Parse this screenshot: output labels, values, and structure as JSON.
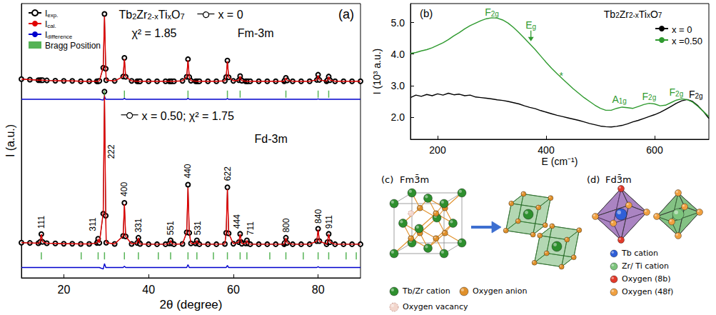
{
  "chart_data": [
    {
      "type": "line",
      "title": "(a)",
      "x_label": "2θ (degree)",
      "y_label": "I (a.u.)",
      "xlim": [
        10,
        90
      ],
      "xticks": [
        20,
        40,
        60,
        80
      ],
      "ylim": [
        -6,
        100
      ],
      "tick_labels": "x",
      "legend": "upper left",
      "x": [
        10,
        12,
        14,
        14.4,
        14.7,
        15,
        16,
        18,
        20,
        22,
        24,
        26,
        27.8,
        28,
        28.1,
        28.4,
        29.3,
        29.6,
        29.9,
        30,
        32,
        34,
        34.3,
        34.6,
        36,
        37.3,
        37.6,
        37.9,
        38,
        40,
        42,
        44,
        44.9,
        45.2,
        45.5,
        46,
        48,
        49,
        49.3,
        49.6,
        50,
        51.1,
        51.4,
        51.7,
        52,
        54,
        56,
        58,
        58.3,
        58.6,
        58.9,
        60,
        61.3,
        61.6,
        61.9,
        62,
        62.9,
        63.2,
        63.5,
        64,
        66,
        68,
        70,
        72,
        72.1,
        72.4,
        72.7,
        74,
        76,
        78,
        79.7,
        80,
        80.3,
        82,
        82.2,
        82.5,
        82.8,
        84,
        86,
        88,
        90
      ],
      "series": [
        {
          "name": "Iexp.",
          "color": "#000000",
          "marker": "circle",
          "values": [
            70.8,
            70.6,
            70.4,
            70.4,
            70.4,
            70.4,
            70.3,
            70.2,
            70.1,
            70.1,
            70,
            70,
            70,
            70,
            70,
            70.1,
            75.2,
            96,
            74.8,
            70.4,
            70.1,
            71.8,
            79,
            71.7,
            70.1,
            70,
            70,
            70,
            70,
            70,
            70,
            70,
            70,
            70,
            70,
            70,
            70.1,
            71.7,
            78.5,
            71.6,
            70.2,
            70,
            70,
            70,
            70,
            70,
            70,
            70.1,
            71.6,
            78,
            71.5,
            70.1,
            70.4,
            72,
            70.4,
            70.2,
            70,
            70,
            70,
            70,
            70,
            70,
            70,
            70,
            70.3,
            71.3,
            70.3,
            70,
            70,
            70,
            70.5,
            72.5,
            70.5,
            70,
            70.4,
            71.8,
            70.4,
            70,
            70,
            70,
            70
          ]
        },
        {
          "name": "Ical.",
          "color": "#e00000",
          "values": [
            70.8,
            70.6,
            70.4,
            70.4,
            70.4,
            70.4,
            70.3,
            70.2,
            70.1,
            70.1,
            70,
            70,
            70,
            70,
            70,
            70.1,
            75.5,
            95,
            74.8,
            70.4,
            70.1,
            71.8,
            78.6,
            71.7,
            70.1,
            70,
            70,
            70,
            70,
            70,
            70,
            70,
            70,
            70,
            70,
            70,
            70.1,
            71.7,
            78.1,
            71.6,
            70.2,
            70,
            70,
            70,
            70,
            70,
            70,
            70.1,
            71.6,
            77.7,
            71.5,
            70.1,
            70.4,
            72,
            70.4,
            70.2,
            70,
            70,
            70,
            70,
            70,
            70,
            70,
            70,
            70.3,
            71.3,
            70.3,
            70,
            70,
            70,
            70.5,
            72.3,
            70.5,
            70,
            70.4,
            71.8,
            70.4,
            70,
            70,
            70,
            70
          ]
        },
        {
          "name": "Idifference",
          "color": "#0000cc",
          "values": [
            63,
            63,
            63,
            63,
            63,
            63,
            63,
            63,
            63,
            63,
            63,
            63,
            63,
            63,
            63,
            63,
            62.7,
            64,
            63,
            63,
            63,
            63,
            63.4,
            63,
            63,
            63,
            63,
            63,
            63,
            63,
            63,
            63,
            63,
            63,
            63,
            63,
            63,
            63,
            63.4,
            63,
            63,
            63,
            63,
            63,
            63,
            63,
            63,
            63,
            63,
            63.3,
            63,
            63,
            63,
            63,
            63,
            63,
            63,
            63,
            63,
            63,
            63,
            63,
            63,
            63,
            63,
            63,
            63,
            63,
            63,
            63,
            63,
            63.2,
            63,
            63,
            63,
            63,
            63,
            63,
            63,
            63,
            63
          ]
        },
        {
          "name": "Bragg Position",
          "type": "bragg",
          "color": "#2ca02c",
          "x": [
            29.6,
            34.3,
            49.3,
            58.6,
            61.6,
            72.4,
            80,
            82.5
          ],
          "y": 65
        },
        {
          "name": "Iexp.",
          "color": "#000000",
          "marker": "circle",
          "values": [
            7.6,
            7.5,
            7.4,
            7.9,
            10.9,
            7.9,
            7.4,
            7.3,
            7.2,
            7.2,
            7.1,
            7.1,
            7.5,
            8,
            9.1,
            7.5,
            18.8,
            66,
            18,
            7.6,
            7.1,
            10.2,
            23,
            10,
            7.1,
            7.5,
            9.5,
            7.5,
            7.1,
            7,
            7,
            7,
            7.3,
            8.5,
            7.3,
            7,
            7.1,
            11.6,
            30,
            11.4,
            7.3,
            7.3,
            8.5,
            7.3,
            7,
            7,
            7,
            7.1,
            11.4,
            29,
            11.2,
            7.2,
            7.8,
            11,
            7.8,
            7.2,
            7.3,
            8.5,
            7.3,
            7,
            7,
            7,
            7,
            7,
            7.5,
            9.5,
            7.5,
            7,
            7,
            7,
            8.2,
            13,
            8.2,
            7,
            7.8,
            11,
            7.8,
            7,
            7,
            7,
            7
          ]
        },
        {
          "name": "Ical.",
          "color": "#e00000",
          "values": [
            7.6,
            7.5,
            7.4,
            7.9,
            10.9,
            7.9,
            7.4,
            7.3,
            7.2,
            7.2,
            7.1,
            7.1,
            7.5,
            8,
            9.1,
            7.5,
            19.4,
            64.5,
            18,
            7.6,
            7.1,
            10.2,
            22.5,
            10,
            7.1,
            7.5,
            9.5,
            7.5,
            7.1,
            7,
            7,
            7,
            7.3,
            8.5,
            7.3,
            7,
            7.1,
            11.6,
            28.9,
            11.4,
            7.3,
            7.3,
            8.5,
            7.3,
            7,
            7,
            7,
            7.1,
            11.4,
            28.2,
            11.2,
            7.2,
            7.8,
            11,
            7.8,
            7.2,
            7.3,
            8.5,
            7.3,
            7,
            7,
            7,
            7,
            7,
            7.5,
            9.5,
            7.5,
            7,
            7,
            7,
            8.2,
            12.7,
            8.2,
            7,
            7.8,
            11,
            7.8,
            7,
            7,
            7,
            7
          ]
        },
        {
          "name": "Idifference",
          "color": "#0000cc",
          "values": [
            -2,
            -2,
            -2,
            -2,
            -2,
            -2,
            -2,
            -2,
            -2,
            -2,
            -2,
            -2,
            -2,
            -2,
            -2,
            -2,
            -2.6,
            -0.5,
            -2,
            -2,
            -2,
            -2,
            -1.5,
            -2,
            -2,
            -2,
            -2,
            -2,
            -2,
            -2,
            -2,
            -2,
            -2,
            -2,
            -2,
            -2,
            -2,
            -2,
            -0.9,
            -2,
            -2,
            -2,
            -2,
            -2,
            -2,
            -2,
            -2,
            -2,
            -2,
            -1.2,
            -2,
            -2,
            -2,
            -2,
            -2,
            -2,
            -2,
            -2,
            -2,
            -2,
            -2,
            -2,
            -2,
            -2,
            -2,
            -2,
            -2,
            -2,
            -2,
            -2,
            -2,
            -1.7,
            -2,
            -2,
            -2,
            -2,
            -2,
            -2,
            -2,
            -2,
            -2
          ]
        },
        {
          "name": "Bragg Position",
          "type": "bragg",
          "color": "#2ca02c",
          "x": [
            14.7,
            24.1,
            28.1,
            29.6,
            34.3,
            37.6,
            42.3,
            45.2,
            49.3,
            51.4,
            55.3,
            58.6,
            61.6,
            63.2,
            68.6,
            72.4,
            76.5,
            80,
            82.5,
            86.6,
            89
          ],
          "y": 2.5
        }
      ],
      "annotations": [
        {
          "text": "Tb2Zr2-xTixO7",
          "x": 33,
          "y": 96
        },
        {
          "text": "x = 0",
          "x": 51.5,
          "y": 96,
          "marker": "circle"
        },
        {
          "text": "χ² = 1.85",
          "x": 36,
          "y": 89
        },
        {
          "text": "Fm-3m",
          "x": 61,
          "y": 89
        },
        {
          "text": "x = 0.50; χ² = 1.75",
          "x": 33.5,
          "y": 57,
          "marker": "circle"
        },
        {
          "text": "Fd-3m",
          "x": 65,
          "y": 48
        }
      ],
      "peak_labels": [
        {
          "text": "111",
          "x": 14.7,
          "y": 13
        },
        {
          "text": "311",
          "x": 26.8,
          "y": 12
        },
        {
          "text": "222",
          "x": 31.3,
          "y": 40
        },
        {
          "text": "400",
          "x": 34.3,
          "y": 25.5
        },
        {
          "text": "331",
          "x": 37.6,
          "y": 11.5
        },
        {
          "text": "551",
          "x": 45.2,
          "y": 10.5
        },
        {
          "text": "440",
          "x": 49.3,
          "y": 32.5
        },
        {
          "text": "531",
          "x": 51.6,
          "y": 10.5
        },
        {
          "text": "622",
          "x": 58.6,
          "y": 31.5
        },
        {
          "text": "444",
          "x": 60.8,
          "y": 13
        },
        {
          "text": "711",
          "x": 64.1,
          "y": 10.5
        },
        {
          "text": "800",
          "x": 72.4,
          "y": 11.5
        },
        {
          "text": "840",
          "x": 80,
          "y": 15
        },
        {
          "text": "911",
          "x": 82.6,
          "y": 13
        }
      ]
    },
    {
      "type": "line",
      "title": "(b)",
      "x_label": "E (cm⁻¹)",
      "y_label": "I (10³ a.u.)",
      "xlim": [
        150,
        700
      ],
      "xticks": [
        200,
        400,
        600
      ],
      "ylim": [
        1.3,
        5.6
      ],
      "yticks": [
        {
          "value": 2,
          "label": "2.0"
        },
        {
          "value": 3,
          "label": "3.0"
        },
        {
          "value": 4,
          "label": "4.0"
        },
        {
          "value": 5,
          "label": "5.0"
        }
      ],
      "legend": "upper right",
      "x": [
        150,
        160,
        170,
        180,
        190,
        200,
        210,
        220,
        230,
        240,
        250,
        260,
        270,
        280,
        290,
        300,
        310,
        320,
        330,
        340,
        350,
        360,
        370,
        380,
        390,
        400,
        410,
        420,
        430,
        440,
        450,
        460,
        470,
        480,
        490,
        500,
        510,
        520,
        530,
        540,
        550,
        560,
        570,
        580,
        590,
        600,
        610,
        620,
        630,
        640,
        650,
        660,
        670,
        680,
        690,
        700
      ],
      "series": [
        {
          "name": "x = 0",
          "color": "#000000",
          "values": [
            2.62,
            2.7,
            2.66,
            2.72,
            2.68,
            2.74,
            2.7,
            2.76,
            2.71,
            2.73,
            2.68,
            2.7,
            2.64,
            2.62,
            2.6,
            2.58,
            2.55,
            2.53,
            2.5,
            2.46,
            2.42,
            2.36,
            2.31,
            2.27,
            2.21,
            2.16,
            2.11,
            2.06,
            2.02,
            1.98,
            1.94,
            1.9,
            1.85,
            1.8,
            1.76,
            1.72,
            1.7,
            1.69,
            1.71,
            1.74,
            1.79,
            1.85,
            1.9,
            1.96,
            2.02,
            2.08,
            2.15,
            2.24,
            2.34,
            2.44,
            2.52,
            2.56,
            2.5,
            2.36,
            2.18,
            1.96
          ]
        },
        {
          "name": "x =0.50",
          "color": "#2f9a2f",
          "values": [
            4.02,
            4.05,
            4.1,
            4.14,
            4.2,
            4.28,
            4.36,
            4.46,
            4.58,
            4.68,
            4.8,
            4.9,
            4.98,
            5.06,
            5.12,
            5.15,
            5.14,
            5.08,
            4.98,
            4.84,
            4.68,
            4.5,
            4.32,
            4.14,
            3.94,
            3.74,
            3.55,
            3.38,
            3.22,
            3.06,
            2.9,
            2.76,
            2.62,
            2.5,
            2.38,
            2.28,
            2.22,
            2.22,
            2.28,
            2.32,
            2.3,
            2.28,
            2.34,
            2.4,
            2.44,
            2.42,
            2.36,
            2.38,
            2.46,
            2.54,
            2.58,
            2.56,
            2.48,
            2.34,
            2.18,
            2.02
          ]
        }
      ],
      "annotations": [
        {
          "text": "Tb2Zr2-xTixO7",
          "x": 560,
          "y": 5.3,
          "color": "#000000"
        },
        {
          "text": "F2g",
          "x": 300,
          "y": 5.36,
          "color": "#2f9a2f"
        },
        {
          "text": "Eg",
          "x": 372,
          "y": 4.95,
          "color": "#2f9a2f",
          "marker": "arrow"
        },
        {
          "text": "*",
          "x": 428,
          "y": 3.35,
          "color": "#2f9a2f"
        },
        {
          "text": "A1g",
          "x": 535,
          "y": 2.6,
          "color": "#2f9a2f"
        },
        {
          "text": "F2g",
          "x": 590,
          "y": 2.7,
          "color": "#2f9a2f"
        },
        {
          "text": "F2g",
          "x": 640,
          "y": 2.82,
          "color": "#2f9a2f"
        },
        {
          "text": "F2g",
          "x": 676,
          "y": 2.75,
          "color": "#000000"
        }
      ]
    }
  ],
  "diagrams": [
    {
      "label": "(c)",
      "title": "Fm3̄m",
      "legend": [
        {
          "label": "Tb/Zr cation",
          "color": "#2e8f2e"
        },
        {
          "label": "Oxygen anion",
          "color": "#e0902a"
        },
        {
          "label": "Oxygen vacancy",
          "color": "#f2d6cc"
        }
      ]
    },
    {
      "label": "(d)",
      "title": "Fd3̄m",
      "legend": [
        {
          "label": "Tb cation",
          "color": "#2f5fd8"
        },
        {
          "label": "Zr/ Ti cation",
          "color": "#7cc47c"
        },
        {
          "label": "Oxygen (8b)",
          "color": "#e23a2a"
        },
        {
          "label": "Oxygen (48f)",
          "color": "#f0a040"
        }
      ]
    }
  ]
}
